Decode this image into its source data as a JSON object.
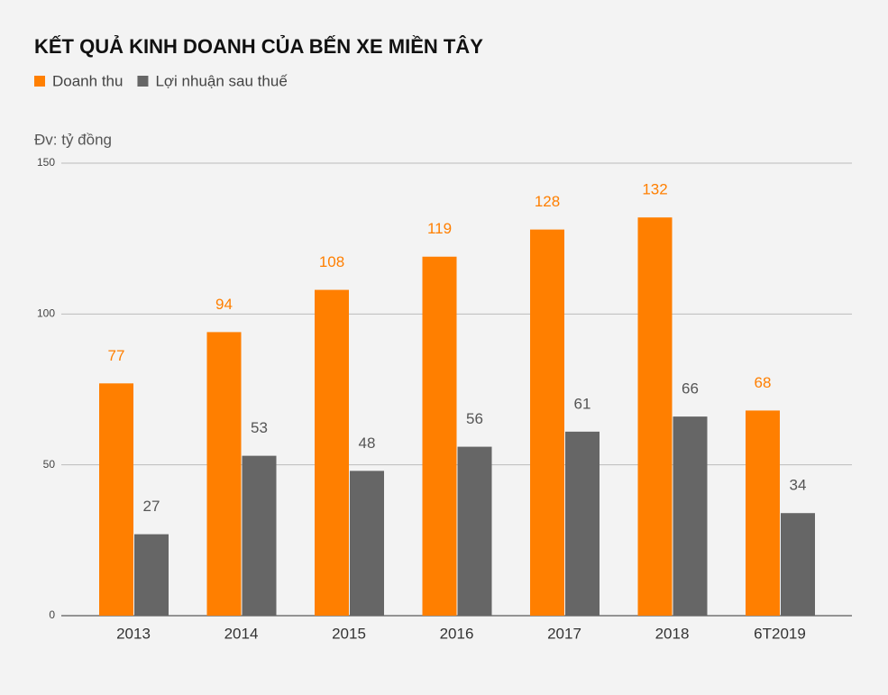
{
  "chart_data": {
    "type": "bar",
    "title": "KẾT QUẢ KINH DOANH CỦA BẾN XE MIỀN TÂY",
    "y_label": "Đv: tỷ đồng",
    "categories": [
      "2013",
      "2014",
      "2015",
      "2016",
      "2017",
      "2018",
      "6T2019"
    ],
    "series": [
      {
        "name": "Doanh thu",
        "color": "#ff7f00",
        "values": [
          77,
          94,
          108,
          119,
          128,
          132,
          68
        ]
      },
      {
        "name": "Lợi nhuận sau thuế",
        "color": "#666666",
        "values": [
          27,
          53,
          48,
          56,
          61,
          66,
          34
        ]
      }
    ],
    "ylim": [
      0,
      150
    ],
    "yticks": [
      0,
      50,
      100,
      150
    ],
    "grid": true,
    "legend": "top-left"
  }
}
